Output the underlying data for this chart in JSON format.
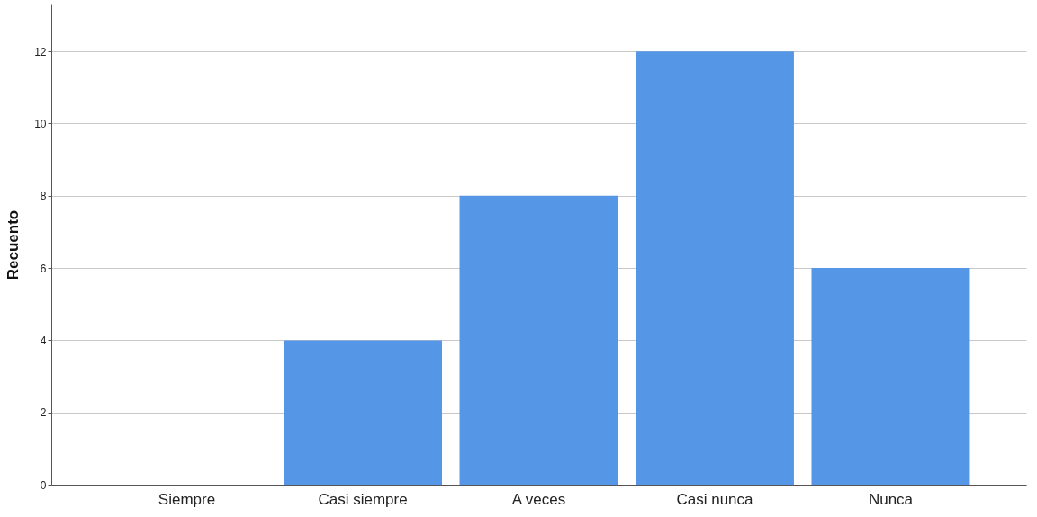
{
  "chart_data": {
    "type": "bar",
    "ylabel": "Recuento",
    "categories": [
      "Siempre",
      "Casi siempre",
      "A veces",
      "Casi nunca",
      "Nunca"
    ],
    "values": [
      0,
      4,
      8,
      12,
      6
    ],
    "color": "#5596e6",
    "ylim": [
      0,
      13.3
    ],
    "yticks": [
      0,
      2,
      4,
      6,
      8,
      10,
      12
    ],
    "grid": "y"
  }
}
